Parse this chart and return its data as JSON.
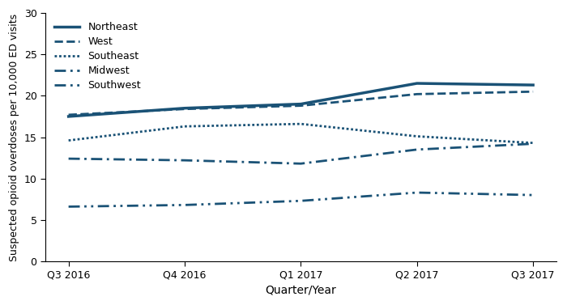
{
  "x_labels": [
    "Q3 2016",
    "Q4 2016",
    "Q1 2017",
    "Q2 2017",
    "Q3 2017"
  ],
  "series": {
    "Northeast": [
      17.5,
      18.5,
      19.0,
      21.5,
      21.3
    ],
    "West": [
      17.7,
      18.4,
      18.8,
      20.2,
      20.5
    ],
    "Southeast": [
      14.6,
      16.3,
      16.6,
      15.1,
      14.3
    ],
    "Midwest": [
      12.4,
      12.2,
      11.8,
      13.5,
      14.2
    ],
    "Southwest": [
      6.6,
      6.8,
      7.3,
      8.3,
      8.0
    ]
  },
  "ylabel": "Suspected opioid overdoses per 10,000 ED visits",
  "xlabel": "Quarter/Year",
  "ylim": [
    0,
    30
  ],
  "yticks": [
    0,
    5,
    10,
    15,
    20,
    25,
    30
  ],
  "color": "#1a5276",
  "background_color": "#ffffff",
  "legend_fontsize": 9,
  "axis_fontsize": 9,
  "ylabel_fontsize": 9
}
